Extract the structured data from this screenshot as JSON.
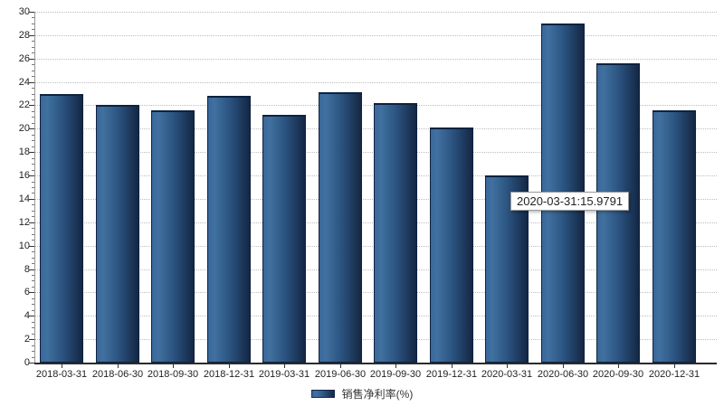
{
  "chart_data": {
    "type": "bar",
    "title": "",
    "xlabel": "",
    "ylabel": "",
    "categories": [
      "2018-03-31",
      "2018-06-30",
      "2018-09-30",
      "2018-12-31",
      "2019-03-31",
      "2019-06-30",
      "2019-09-30",
      "2019-12-31",
      "2020-03-31",
      "2020-06-30",
      "2020-09-30",
      "2020-12-31"
    ],
    "series": [
      {
        "name": "销售净利率(%)",
        "values": [
          23.0,
          22.0,
          21.6,
          22.8,
          21.2,
          23.1,
          22.2,
          20.1,
          15.9791,
          29.0,
          25.6,
          21.6
        ]
      }
    ],
    "ylim": [
      0,
      30
    ],
    "y_tick_step": 2,
    "y_minor_tick_step": 0.5,
    "y_tick_labels": [
      "0",
      "2",
      "4",
      "6",
      "8",
      "10",
      "12",
      "14",
      "16",
      "18",
      "20",
      "22",
      "24",
      "26",
      "28",
      "30"
    ],
    "grid": "horizontal-dotted",
    "legend_position": "bottom-center",
    "annotations": [
      {
        "type": "tooltip",
        "anchor_category": "2020-03-31",
        "text": "2020-03-31:15.9791"
      }
    ]
  },
  "tooltip": {
    "text": "2020-03-31:15.9791"
  },
  "legend": {
    "label": "销售净利率(%)"
  },
  "colors": {
    "bar_gradient_left": "#3a689b",
    "bar_gradient_highlight": "#40719f",
    "bar_gradient_right": "#142744",
    "bar_border": "#0e2240",
    "gridline": "#bdbdbd",
    "axis_line": "#2b2b2b",
    "tick_text": "#222222",
    "tooltip_bg": "#ffffff",
    "tooltip_border": "#9a9a9a"
  }
}
